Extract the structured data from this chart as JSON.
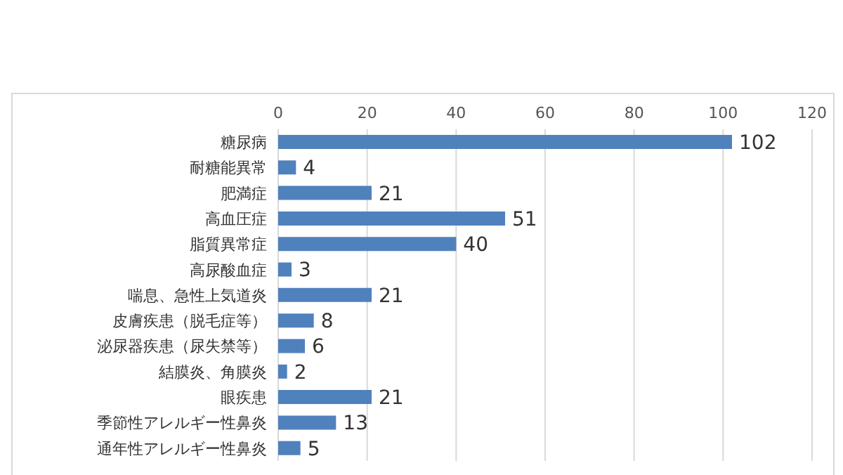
{
  "chart_data": {
    "type": "bar",
    "orientation": "horizontal",
    "categories": [
      "糖尿病",
      "耐糖能異常",
      "肥満症",
      "高血圧症",
      "脂質異常症",
      "高尿酸血症",
      "喘息、急性上気道炎",
      "皮膚疾患（脱毛症等）",
      "泌尿器疾患（尿失禁等）",
      "結膜炎、角膜炎",
      "眼疾患",
      "季節性アレルギー性鼻炎",
      "通年性アレルギー性鼻炎"
    ],
    "values": [
      102,
      4,
      21,
      51,
      40,
      3,
      21,
      8,
      6,
      2,
      21,
      13,
      5
    ],
    "color": "#4f81bd",
    "xlim": [
      0,
      120
    ],
    "xticks": [
      0,
      20,
      40,
      60,
      80,
      100,
      120
    ],
    "grid": "x",
    "data_labels": true
  }
}
